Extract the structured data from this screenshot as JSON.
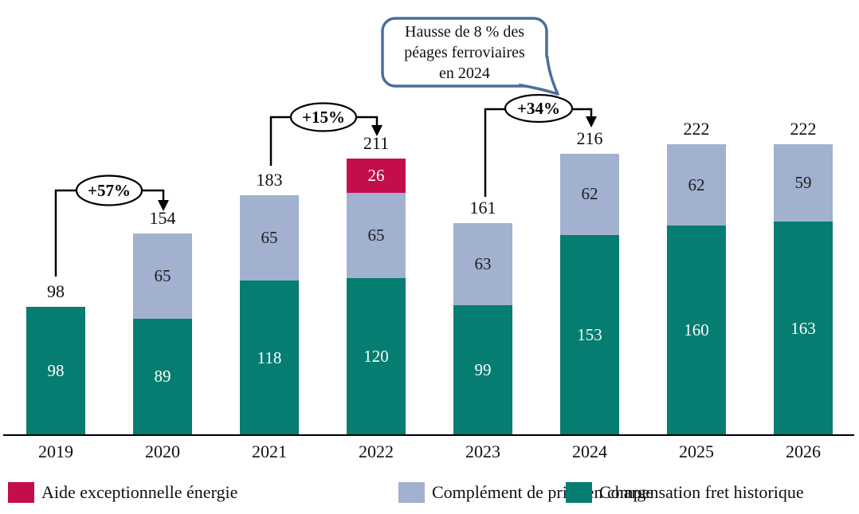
{
  "chart_data": {
    "type": "bar",
    "stacked": true,
    "title": "",
    "xlabel": "",
    "ylabel": "",
    "ylim": [
      0,
      240
    ],
    "grid": false,
    "legend_position": "bottom",
    "categories": [
      "2019",
      "2020",
      "2021",
      "2022",
      "2023",
      "2024",
      "2025",
      "2026"
    ],
    "series": [
      {
        "name": "Compensation fret historique",
        "color": "#067d71",
        "label_color": "#ffffff",
        "values": [
          98,
          89,
          118,
          120,
          99,
          153,
          160,
          163
        ]
      },
      {
        "name": "Complément de prise en charge",
        "color": "#a1b1cf",
        "label_color": "#1c1c1c",
        "values": [
          0,
          65,
          65,
          65,
          63,
          62,
          62,
          59
        ]
      },
      {
        "name": "Aide exceptionnelle énergie",
        "color": "#c40d4c",
        "label_color": "#ffffff",
        "values": [
          0,
          0,
          0,
          26,
          0,
          0,
          0,
          0
        ]
      }
    ],
    "totals": [
      98,
      154,
      183,
      211,
      161,
      216,
      222,
      222
    ],
    "annotations": [
      {
        "label": "+57%",
        "from_year": "2019",
        "to_year": "2020"
      },
      {
        "label": "+15%",
        "from_year": "2021",
        "to_year": "2022"
      },
      {
        "label": "+34%",
        "from_year": "2023",
        "to_year": "2024"
      }
    ],
    "callout": {
      "lines": [
        "Hausse de 8 % des",
        "péages ferroviaires",
        "en 2024"
      ],
      "border_color": "#4a6d9c"
    },
    "axis_color": "#000000"
  },
  "legend": {
    "items": [
      {
        "label": "Aide exceptionnelle énergie",
        "color": "#c40d4c"
      },
      {
        "label": "Complément de prise en charge",
        "color": "#a1b1cf"
      },
      {
        "label": "Compensation fret historique",
        "color": "#067d71"
      }
    ]
  }
}
